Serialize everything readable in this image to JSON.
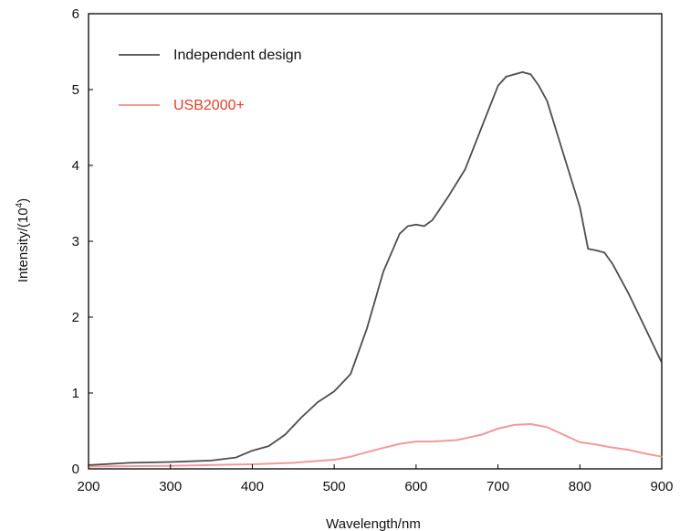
{
  "chart_data": {
    "type": "line",
    "xlabel": "Wavelength/nm",
    "ylabel_main": "Intensity/(10",
    "ylabel_sup": "4",
    "ylabel_close": ")",
    "xlim": [
      200,
      900
    ],
    "ylim": [
      0,
      6
    ],
    "xticks": [
      "200",
      "300",
      "400",
      "500",
      "600",
      "700",
      "800",
      "900"
    ],
    "yticks": [
      "0",
      "1",
      "2",
      "3",
      "4",
      "5",
      "6"
    ],
    "grid": false,
    "legend_position": "top-left",
    "series": [
      {
        "name": "Independent design",
        "color": "#3a3a3a",
        "x": [
          200,
          250,
          300,
          350,
          380,
          400,
          420,
          440,
          460,
          480,
          500,
          520,
          540,
          560,
          580,
          590,
          600,
          610,
          620,
          640,
          660,
          680,
          700,
          710,
          720,
          730,
          740,
          750,
          760,
          780,
          800,
          810,
          820,
          830,
          840,
          860,
          880,
          900
        ],
        "y": [
          0.05,
          0.08,
          0.09,
          0.11,
          0.15,
          0.24,
          0.3,
          0.45,
          0.68,
          0.88,
          1.02,
          1.25,
          1.85,
          2.6,
          3.1,
          3.2,
          3.22,
          3.2,
          3.28,
          3.6,
          3.95,
          4.5,
          5.05,
          5.17,
          5.2,
          5.23,
          5.2,
          5.05,
          4.85,
          4.15,
          3.45,
          2.9,
          2.88,
          2.85,
          2.7,
          2.3,
          1.85,
          1.4
        ]
      },
      {
        "name": "USB2000+",
        "color": "#f08080",
        "x": [
          200,
          300,
          400,
          450,
          500,
          520,
          550,
          580,
          600,
          620,
          650,
          680,
          700,
          720,
          740,
          760,
          780,
          800,
          820,
          840,
          860,
          880,
          900
        ],
        "y": [
          0.03,
          0.04,
          0.06,
          0.08,
          0.12,
          0.16,
          0.25,
          0.33,
          0.36,
          0.36,
          0.38,
          0.45,
          0.53,
          0.58,
          0.59,
          0.55,
          0.45,
          0.35,
          0.32,
          0.28,
          0.25,
          0.2,
          0.16
        ]
      }
    ]
  }
}
